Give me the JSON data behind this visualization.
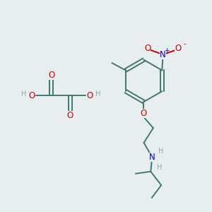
{
  "bg_color": "#e8eef0",
  "bond_color": "#3d7a6e",
  "atom_colors": {
    "O": "#cc0000",
    "N": "#0000cc",
    "C": "#3d7a6e",
    "H": "#8aaba6"
  }
}
